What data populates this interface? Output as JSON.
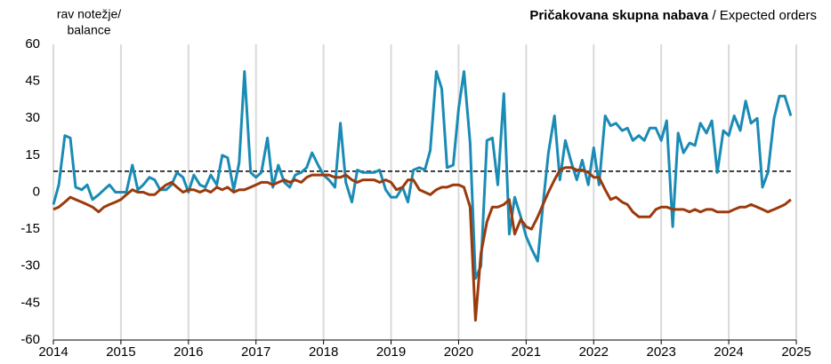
{
  "chart_data": {
    "type": "line",
    "title": "Pričakovana skupna nabava",
    "title_suffix": "/ Expected orders",
    "ylabel": [
      "rav notežje/",
      "balance"
    ],
    "x": [
      2014.0,
      2014.08,
      2014.17,
      2014.25,
      2014.33,
      2014.42,
      2014.5,
      2014.58,
      2014.67,
      2014.75,
      2014.83,
      2014.92,
      2015.0,
      2015.08,
      2015.17,
      2015.25,
      2015.33,
      2015.42,
      2015.5,
      2015.58,
      2015.67,
      2015.75,
      2015.83,
      2015.92,
      2016.0,
      2016.08,
      2016.17,
      2016.25,
      2016.33,
      2016.42,
      2016.5,
      2016.58,
      2016.67,
      2016.75,
      2016.83,
      2016.92,
      2017.0,
      2017.08,
      2017.17,
      2017.25,
      2017.33,
      2017.42,
      2017.5,
      2017.58,
      2017.67,
      2017.75,
      2017.83,
      2017.92,
      2018.0,
      2018.08,
      2018.17,
      2018.25,
      2018.33,
      2018.42,
      2018.5,
      2018.58,
      2018.67,
      2018.75,
      2018.83,
      2018.92,
      2019.0,
      2019.08,
      2019.17,
      2019.25,
      2019.33,
      2019.42,
      2019.5,
      2019.58,
      2019.67,
      2019.75,
      2019.83,
      2019.92,
      2020.0,
      2020.08,
      2020.17,
      2020.25,
      2020.33,
      2020.42,
      2020.5,
      2020.58,
      2020.67,
      2020.75,
      2020.83,
      2020.92,
      2021.0,
      2021.08,
      2021.17,
      2021.25,
      2021.33,
      2021.42,
      2021.5,
      2021.58,
      2021.67,
      2021.75,
      2021.83,
      2021.92,
      2022.0,
      2022.08,
      2022.17,
      2022.25,
      2022.33,
      2022.42,
      2022.5,
      2022.58,
      2022.67,
      2022.75,
      2022.83,
      2022.92,
      2023.0,
      2023.08,
      2023.17,
      2023.25,
      2023.33,
      2023.42,
      2023.5,
      2023.58,
      2023.67,
      2023.75,
      2023.83,
      2023.92,
      2024.0,
      2024.08,
      2024.17,
      2024.25,
      2024.33,
      2024.42,
      2024.5,
      2024.58,
      2024.67,
      2024.75,
      2024.83,
      2024.92
    ],
    "series": [
      {
        "color": "#1a8bb5",
        "values": [
          -5,
          3,
          23,
          22,
          2,
          1,
          3,
          -3,
          -1,
          1,
          3,
          0,
          0,
          0,
          11,
          1,
          3,
          6,
          5,
          1,
          1,
          3,
          8,
          6,
          0,
          7,
          3,
          2,
          7,
          3,
          15,
          14,
          1,
          12,
          49,
          8,
          6,
          8,
          22,
          2,
          11,
          4,
          2,
          7,
          8,
          10,
          16,
          11,
          7,
          5,
          2,
          28,
          4,
          -4,
          9,
          8,
          8,
          8,
          9,
          1,
          -2,
          -2,
          2,
          -4,
          9,
          10,
          9,
          17,
          49,
          42,
          10,
          11,
          34,
          49,
          20,
          -35,
          -30,
          21,
          22,
          3,
          40,
          -17,
          -2,
          -10,
          -18,
          -23,
          -28,
          -5,
          16,
          31,
          5,
          21,
          12,
          5,
          13,
          3,
          18,
          3,
          31,
          27,
          28,
          25,
          26,
          21,
          23,
          21,
          26,
          26,
          21,
          29,
          -14,
          24,
          16,
          20,
          19,
          28,
          24,
          29,
          8,
          25,
          23,
          31,
          25,
          37,
          28,
          30,
          2,
          8,
          30,
          39,
          39,
          31
        ]
      },
      {
        "color": "#9b3a0c",
        "values": [
          -7,
          -6,
          -4,
          -2,
          -3,
          -4,
          -5,
          -6,
          -8,
          -6,
          -5,
          -4,
          -3,
          -1,
          1,
          0,
          0,
          -1,
          -1,
          1,
          3,
          4,
          2,
          0,
          1,
          1,
          0,
          1,
          0,
          2,
          1,
          2,
          0,
          1,
          1,
          2,
          3,
          4,
          4,
          3,
          4,
          5,
          4,
          5,
          4,
          6,
          7,
          7,
          7,
          7,
          6,
          6,
          7,
          5,
          4,
          5,
          5,
          5,
          4,
          5,
          4,
          1,
          2,
          5,
          5,
          1,
          0,
          -1,
          1,
          2,
          2,
          3,
          3,
          2,
          -6,
          -52,
          -25,
          -12,
          -6,
          -6,
          -5,
          -3,
          -17,
          -11,
          -14,
          -15,
          -10,
          -5,
          0,
          5,
          9,
          10,
          10,
          9,
          9,
          8,
          6,
          6,
          1,
          -3,
          -2,
          -4,
          -5,
          -8,
          -10,
          -10,
          -10,
          -7,
          -6,
          -6,
          -7,
          -7,
          -7,
          -8,
          -7,
          -8,
          -7,
          -7,
          -8,
          -8,
          -8,
          -7,
          -6,
          -6,
          -5,
          -6,
          -7,
          -8,
          -7,
          -6,
          -5,
          -3
        ]
      }
    ],
    "reference_line": 8.5,
    "xlim": [
      2014,
      2025
    ],
    "xticks": [
      2014,
      2015,
      2016,
      2017,
      2018,
      2019,
      2020,
      2021,
      2022,
      2023,
      2024,
      2025
    ],
    "ylim": [
      -60,
      60
    ],
    "yticks": [
      60,
      45,
      30,
      15,
      0,
      -15,
      -30,
      -45,
      -60
    ],
    "grid": true
  }
}
